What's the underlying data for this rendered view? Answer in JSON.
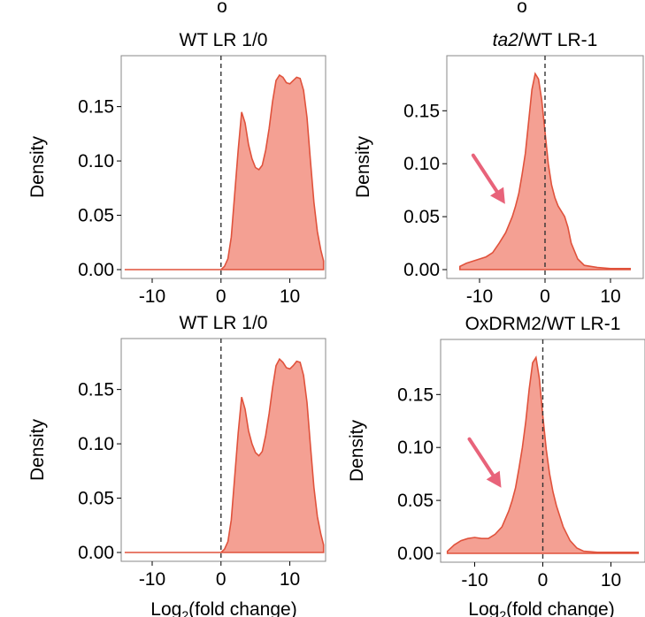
{
  "colors": {
    "fill": "#f4a093",
    "line": "#e0523c",
    "arrow": "#e8637a",
    "vline": "#333333",
    "frame": "#888888"
  },
  "xlabel": "Log2(fold change)",
  "xlabel_parts": {
    "base": "Log",
    "sub": "2",
    "rest": "(fold change)"
  },
  "top_letter_left": "o",
  "top_letter_right": "o",
  "chart_data": [
    {
      "type": "area",
      "title": "WT LR 1/0",
      "title_parts": [
        {
          "text": "WT LR 1/0",
          "italic": false
        }
      ],
      "ylabel": "Density",
      "xlabel": "",
      "xlim": [
        -14.5,
        15.2
      ],
      "ylim": [
        0,
        0.192
      ],
      "xticks": [
        -10,
        0,
        10
      ],
      "xtick_labels": [
        "-10",
        "0",
        "10"
      ],
      "yticks": [
        0,
        0.05,
        0.1,
        0.15
      ],
      "ytick_labels": [
        "0.00",
        "0.05",
        "0.10",
        "0.15"
      ],
      "vline": 0,
      "arrow": false,
      "x": [
        -14,
        0,
        0.5,
        1,
        1.5,
        2,
        2.5,
        3,
        3.5,
        4,
        4.5,
        5,
        5.5,
        6,
        6.5,
        7,
        7.5,
        8,
        8.5,
        9,
        9.5,
        10,
        10.5,
        11,
        11.5,
        12,
        12.5,
        13,
        13.5,
        14,
        14.5,
        14.9
      ],
      "y": [
        0,
        0,
        0.003,
        0.01,
        0.03,
        0.07,
        0.11,
        0.145,
        0.135,
        0.115,
        0.102,
        0.094,
        0.092,
        0.096,
        0.11,
        0.13,
        0.155,
        0.174,
        0.179,
        0.177,
        0.172,
        0.171,
        0.174,
        0.177,
        0.176,
        0.165,
        0.14,
        0.1,
        0.062,
        0.035,
        0.018,
        0.008
      ]
    },
    {
      "type": "area",
      "title": "ta2/WT LR-1",
      "title_parts": [
        {
          "text": "ta2",
          "italic": true
        },
        {
          "text": "/WT LR-1",
          "italic": false
        }
      ],
      "ylabel": "Density",
      "xlabel": "",
      "xlim": [
        -15,
        15
      ],
      "ylim": [
        0,
        0.197
      ],
      "xticks": [
        -10,
        0,
        10
      ],
      "xtick_labels": [
        "-10",
        "0",
        "10"
      ],
      "yticks": [
        0,
        0.05,
        0.1,
        0.15
      ],
      "ytick_labels": [
        "0.00",
        "0.05",
        "0.10",
        "0.15"
      ],
      "vline": 0,
      "arrow": true,
      "x": [
        -13,
        -12,
        -11,
        -10,
        -9,
        -8,
        -7,
        -6,
        -5,
        -4.5,
        -4,
        -3.5,
        -3,
        -2.5,
        -2,
        -1.5,
        -1,
        -0.5,
        0,
        0.5,
        1,
        1.5,
        2,
        2.5,
        3,
        3.5,
        4,
        5,
        6,
        8,
        10,
        13
      ],
      "y": [
        0.003,
        0.006,
        0.008,
        0.01,
        0.012,
        0.016,
        0.025,
        0.035,
        0.05,
        0.06,
        0.072,
        0.09,
        0.11,
        0.14,
        0.17,
        0.185,
        0.18,
        0.16,
        0.13,
        0.1,
        0.08,
        0.068,
        0.06,
        0.055,
        0.05,
        0.04,
        0.025,
        0.01,
        0.004,
        0.002,
        0.001,
        0.001
      ]
    },
    {
      "type": "area",
      "title": "WT LR 1/0",
      "title_parts": [
        {
          "text": "WT LR 1/0",
          "italic": false
        }
      ],
      "ylabel": "Density",
      "xlabel": "Log2(fold change)",
      "xlim": [
        -14.5,
        15.2
      ],
      "ylim": [
        0,
        0.192
      ],
      "xticks": [
        -10,
        0,
        10
      ],
      "xtick_labels": [
        "-10",
        "0",
        "10"
      ],
      "yticks": [
        0,
        0.05,
        0.1,
        0.15
      ],
      "ytick_labels": [
        "0.00",
        "0.05",
        "0.10",
        "0.15"
      ],
      "vline": 0,
      "arrow": false,
      "x": [
        -14,
        0,
        0.5,
        1,
        1.5,
        2,
        2.5,
        3,
        3.5,
        4,
        4.5,
        5,
        5.5,
        6,
        6.5,
        7,
        7.5,
        8,
        8.5,
        9,
        9.5,
        10,
        10.5,
        11,
        11.5,
        12,
        12.5,
        13,
        13.5,
        14,
        14.5,
        14.9
      ],
      "y": [
        0,
        0,
        0.003,
        0.01,
        0.03,
        0.07,
        0.11,
        0.143,
        0.132,
        0.112,
        0.1,
        0.092,
        0.089,
        0.093,
        0.108,
        0.128,
        0.152,
        0.172,
        0.178,
        0.175,
        0.17,
        0.169,
        0.172,
        0.176,
        0.175,
        0.163,
        0.138,
        0.098,
        0.06,
        0.033,
        0.017,
        0.007
      ]
    },
    {
      "type": "area",
      "title": "OxDRM2/WT LR-1",
      "title_parts": [
        {
          "text": "OxDRM2/WT LR-1",
          "italic": false
        }
      ],
      "ylabel": "Density",
      "xlabel": "Log2(fold change)",
      "xlim": [
        -15,
        15
      ],
      "ylim": [
        0,
        0.197
      ],
      "xticks": [
        -10,
        0,
        10
      ],
      "xtick_labels": [
        "-10",
        "0",
        "10"
      ],
      "yticks": [
        0,
        0.05,
        0.1,
        0.15
      ],
      "ytick_labels": [
        "0.00",
        "0.05",
        "0.10",
        "0.15"
      ],
      "vline": 0,
      "arrow": true,
      "x": [
        -14,
        -13,
        -12,
        -11,
        -10,
        -9,
        -8,
        -7,
        -6,
        -5,
        -4.5,
        -4,
        -3.5,
        -3,
        -2.5,
        -2,
        -1.5,
        -1,
        -0.5,
        0,
        0.5,
        1,
        1.5,
        2,
        3,
        4,
        5,
        6,
        8,
        10,
        14
      ],
      "y": [
        0.002,
        0.008,
        0.012,
        0.014,
        0.015,
        0.014,
        0.014,
        0.018,
        0.025,
        0.04,
        0.05,
        0.062,
        0.08,
        0.1,
        0.125,
        0.155,
        0.18,
        0.185,
        0.165,
        0.13,
        0.098,
        0.075,
        0.058,
        0.045,
        0.025,
        0.012,
        0.005,
        0.002,
        0.001,
        0.001,
        0.001
      ]
    }
  ]
}
